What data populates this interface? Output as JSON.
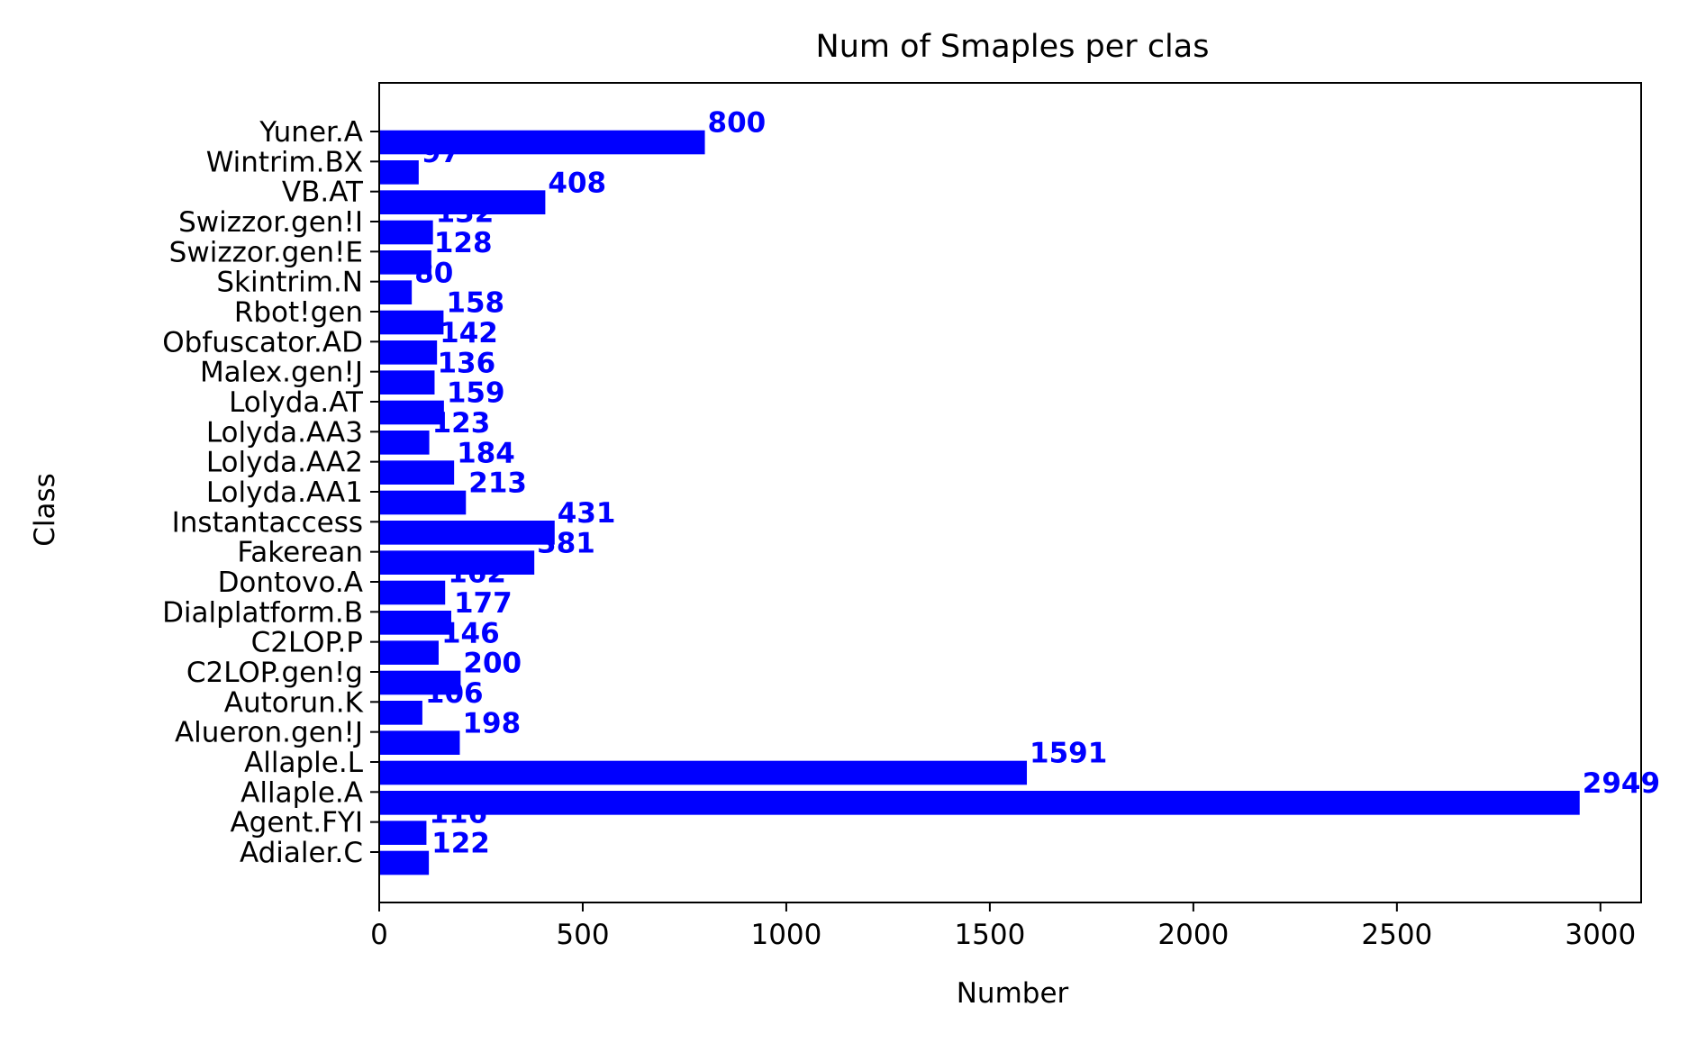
{
  "chart_data": {
    "type": "bar",
    "orientation": "horizontal",
    "title": "Num of Smaples per clas",
    "xlabel": "Number",
    "ylabel": "Class",
    "xlim": [
      0,
      3100
    ],
    "xticks": [
      0,
      500,
      1000,
      1500,
      2000,
      2500,
      3000
    ],
    "xtick_labels": [
      "0",
      "500",
      "1000",
      "1500",
      "2000",
      "2500",
      "3000"
    ],
    "categories": [
      "Adialer.C",
      "Agent.FYI",
      "Allaple.A",
      "Allaple.L",
      "Alueron.gen!J",
      "Autorun.K",
      "C2LOP.gen!g",
      "C2LOP.P",
      "Dialplatform.B",
      "Dontovo.A",
      "Fakerean",
      "Instantaccess",
      "Lolyda.AA1",
      "Lolyda.AA2",
      "Lolyda.AA3",
      "Lolyda.AT",
      "Malex.gen!J",
      "Obfuscator.AD",
      "Rbot!gen",
      "Skintrim.N",
      "Swizzor.gen!E",
      "Swizzor.gen!I",
      "VB.AT",
      "Wintrim.BX",
      "Yuner.A"
    ],
    "values": [
      122,
      116,
      2949,
      1591,
      198,
      106,
      200,
      146,
      177,
      162,
      381,
      431,
      213,
      184,
      123,
      159,
      136,
      142,
      158,
      80,
      128,
      132,
      408,
      97,
      800
    ],
    "bar_color": "#0000ff",
    "label_color": "#0000ff",
    "grid": false,
    "legend": "none"
  }
}
